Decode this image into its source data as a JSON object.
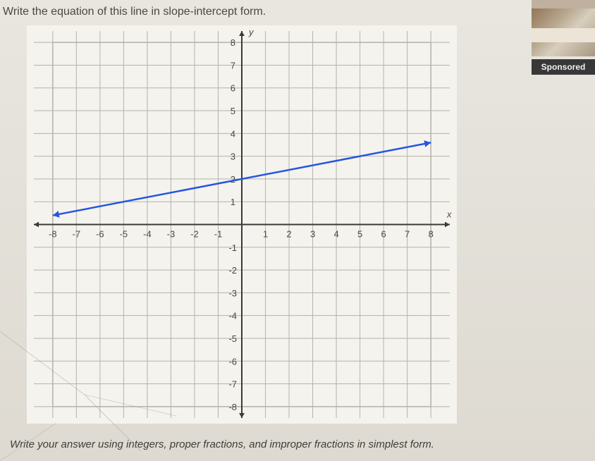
{
  "question_text": "Write the equation of this line in slope-intercept form.",
  "instruction_text": "Write your answer using integers, proper fractions, and improper fractions in simplest form.",
  "ad_label": "Sponsored",
  "graph": {
    "type": "line",
    "xlim": [
      -8.8,
      8.8
    ],
    "ylim": [
      -8.5,
      8.5
    ],
    "xtick_step": 1,
    "ytick_step": 1,
    "xtick_labels_neg": [
      -8,
      -7,
      -6,
      -5,
      -4,
      -3,
      -2,
      -1
    ],
    "xtick_labels_pos": [
      1,
      2,
      3,
      4,
      5,
      6,
      7,
      8
    ],
    "ytick_labels_neg": [
      -1,
      -2,
      -3,
      -4,
      -5,
      -6,
      -7,
      -8
    ],
    "ytick_labels_pos": [
      1,
      2,
      3,
      4,
      5,
      6,
      7,
      8
    ],
    "x_axis_label": "x",
    "y_axis_label": "y",
    "grid_color": "#b5b2aa",
    "axis_color": "#3a3a3a",
    "axis_width": 2,
    "grid_width": 1,
    "background_color": "#f5f3ee",
    "tick_font_size": 13,
    "tick_color": "#4a4844",
    "line": {
      "slope": 0.2,
      "intercept": 2,
      "point_a": [
        -8,
        0.4
      ],
      "point_b": [
        8,
        3.6
      ],
      "color": "#2556e0",
      "width": 2.5,
      "arrow_size": 7
    }
  }
}
